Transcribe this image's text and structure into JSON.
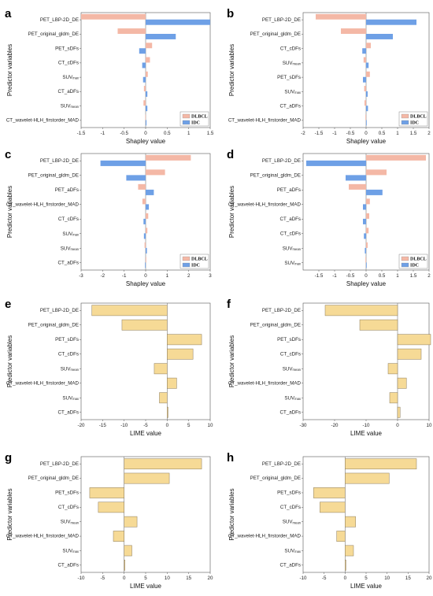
{
  "figure": {
    "panel_labels": [
      "a",
      "b",
      "c",
      "d",
      "e",
      "f",
      "g",
      "h"
    ],
    "colors": {
      "DLBCL": "#f4b8a6",
      "IDC": "#6ea0e6",
      "LIME": "#f6da96",
      "bar_edge": "#8a7a5a"
    }
  },
  "chart_data": [
    {
      "panel": "a",
      "type": "bar",
      "orientation": "horizontal",
      "categories": [
        "PET_LBP-2D_DE",
        "PET_original_gldm_DE",
        "PET_sDFs",
        "CT_cDFs",
        "SUV_max",
        "CT_aDFs",
        "SUV_mean",
        "CT_wavelet-HLH_firstorder_MAD"
      ],
      "series": [
        {
          "name": "DLBCL",
          "values": [
            -1.5,
            -0.65,
            0.15,
            0.1,
            0.05,
            -0.04,
            -0.05,
            -0.01
          ]
        },
        {
          "name": "IDC",
          "values": [
            1.5,
            0.7,
            -0.15,
            -0.08,
            -0.06,
            0.04,
            0.04,
            0.02
          ]
        }
      ],
      "xlabel": "Shapley value",
      "ylabel": "Predictor variables",
      "xlim": [
        -1.5,
        1.5
      ],
      "xticks": [
        -1.5,
        -1,
        -0.5,
        0,
        0.5,
        1,
        1.5
      ],
      "xtick_labels": [
        "-1.5",
        "-1",
        "-0.5",
        "0",
        "0.5",
        "1",
        "1.5"
      ],
      "legend": "bottom-right"
    },
    {
      "panel": "b",
      "type": "bar",
      "orientation": "horizontal",
      "categories": [
        "PET_LBP-2D_DE",
        "PET_original_gldm_DE",
        "CT_cDFs",
        "SUV_mean",
        "PET_sDFs",
        "SUV_max",
        "CT_aDFs",
        "CT_wavelet-HLH_firstorder_MAD"
      ],
      "series": [
        {
          "name": "DLBCL",
          "values": [
            -1.6,
            -0.8,
            0.15,
            -0.08,
            0.12,
            -0.06,
            -0.05,
            -0.02
          ]
        },
        {
          "name": "IDC",
          "values": [
            1.6,
            0.85,
            -0.12,
            0.08,
            -0.1,
            0.05,
            0.06,
            0.02
          ]
        }
      ],
      "xlabel": "Shapley value",
      "ylabel": "Predictor variables",
      "xlim": [
        -2,
        2
      ],
      "xticks": [
        -2,
        -1.5,
        -1,
        -0.5,
        0,
        0.5,
        1,
        1.5,
        2
      ],
      "xtick_labels": [
        "-2",
        "-1.5",
        "-1",
        "-0.5",
        "0",
        "0.5",
        "1",
        "1.5",
        "2"
      ],
      "legend": "bottom-right"
    },
    {
      "panel": "c",
      "type": "bar",
      "orientation": "horizontal",
      "categories": [
        "PET_LBP-2D_DE",
        "PET_original_gldm_DE",
        "PET_aDFs",
        "CT_wavelet-HLH_firstorder_MAD",
        "CT_cDFs",
        "SUV_max",
        "SUV_mean",
        "CT_aDFs"
      ],
      "series": [
        {
          "name": "DLBCL",
          "values": [
            2.1,
            0.9,
            -0.35,
            -0.15,
            0.12,
            0.08,
            -0.05,
            0.03
          ]
        },
        {
          "name": "IDC",
          "values": [
            -2.1,
            -0.9,
            0.38,
            0.15,
            -0.1,
            -0.08,
            0.06,
            -0.03
          ]
        }
      ],
      "xlabel": "Shapley value",
      "ylabel": "Predictor variables",
      "xlim": [
        -3,
        3
      ],
      "xticks": [
        -3,
        -2,
        -1,
        0,
        1,
        2,
        3
      ],
      "xtick_labels": [
        "-3",
        "-2",
        "-1",
        "0",
        "1",
        "2",
        "3"
      ],
      "legend": "bottom-right"
    },
    {
      "panel": "d",
      "type": "bar",
      "orientation": "horizontal",
      "categories": [
        "PET_LBP-2D_DE",
        "PET_original_gldm_DE",
        "PET_aDFs",
        "CT_wavelet-HLH_firstorder_MAD",
        "CT_aDFs",
        "CT_cDFs",
        "SUV_mean",
        "SUV_max"
      ],
      "series": [
        {
          "name": "DLBCL",
          "values": [
            1.9,
            0.65,
            -0.55,
            0.12,
            0.1,
            0.08,
            0.05,
            -0.02
          ]
        },
        {
          "name": "IDC",
          "values": [
            -1.9,
            -0.65,
            0.52,
            -0.1,
            -0.1,
            -0.07,
            -0.04,
            0.02
          ]
        }
      ],
      "xlabel": "Shapley value",
      "ylabel": "Predictor variables",
      "xlim": [
        -2,
        2
      ],
      "xticks": [
        -1.5,
        -1,
        -0.5,
        0,
        0.5,
        1,
        1.5,
        2
      ],
      "xtick_labels": [
        "-1.5",
        "-1",
        "-0.5",
        "0",
        "0.5",
        "1",
        "1.5",
        "2"
      ],
      "legend": "bottom-right"
    },
    {
      "panel": "e",
      "type": "bar",
      "orientation": "horizontal",
      "categories": [
        "PET_LBP-2D_DE",
        "PET_original_gldm_DE",
        "PET_sDFs",
        "CT_cDFs",
        "SUV_mean",
        "CT_wavelet-HLH_firstorder_MAD",
        "SUV_max",
        "CT_aDFs"
      ],
      "series": [
        {
          "name": "LIME",
          "values": [
            -17.5,
            -10.5,
            8,
            6,
            -3,
            2.2,
            -1.8,
            0.2
          ]
        }
      ],
      "xlabel": "LIME value",
      "ylabel": "Predictor variables",
      "xlim": [
        -20,
        10
      ],
      "xticks": [
        -20,
        -15,
        -10,
        -5,
        0,
        5,
        10
      ],
      "xtick_labels": [
        "-20",
        "-15",
        "-10",
        "-5",
        "0",
        "5",
        "10"
      ]
    },
    {
      "panel": "f",
      "type": "bar",
      "orientation": "horizontal",
      "categories": [
        "PET_LBP-2D_DE",
        "PET_original_gldm_DE",
        "PET_sDFs",
        "CT_cDFs",
        "SUV_mean",
        "CT_wavelet-HLH_firstorder_MAD",
        "SUV_max",
        "CT_aDFs"
      ],
      "series": [
        {
          "name": "LIME",
          "values": [
            -23,
            -12,
            10.5,
            7.5,
            -3,
            2.8,
            -2.5,
            0.8
          ]
        }
      ],
      "xlabel": "LIME value",
      "ylabel": "Predictor variables",
      "xlim": [
        -30,
        10
      ],
      "xticks": [
        -30,
        -20,
        -10,
        0,
        10
      ],
      "xtick_labels": [
        "-30",
        "-20",
        "-10",
        "0",
        "10"
      ]
    },
    {
      "panel": "g",
      "type": "bar",
      "orientation": "horizontal",
      "categories": [
        "PET_LBP-2D_DE",
        "PET_original_gldm_DE",
        "PET_sDFs",
        "CT_cDFs",
        "SUV_mean",
        "CT_wavelet-HLH_firstorder_MAD",
        "SUV_max",
        "CT_aDFs"
      ],
      "series": [
        {
          "name": "LIME",
          "values": [
            18,
            10.5,
            -8,
            -6,
            3,
            -2.5,
            1.8,
            0.2
          ]
        }
      ],
      "xlabel": "LIME value",
      "ylabel": "Predictor variables",
      "xlim": [
        -10,
        20
      ],
      "xticks": [
        -10,
        -5,
        0,
        5,
        10,
        15,
        20
      ],
      "xtick_labels": [
        "-10",
        "-5",
        "0",
        "5",
        "10",
        "15",
        "20"
      ]
    },
    {
      "panel": "h",
      "type": "bar",
      "orientation": "horizontal",
      "categories": [
        "PET_LBP-2D_DE",
        "PET_original_gldm_DE",
        "PET_sDFs",
        "CT_cDFs",
        "SUV_mean",
        "CT_wavelet-HLH_firstorder_MAD",
        "SUV_max",
        "CT_aDFs"
      ],
      "series": [
        {
          "name": "LIME",
          "values": [
            17,
            10.5,
            -7.5,
            -6,
            2.5,
            -2,
            2,
            0.2
          ]
        }
      ],
      "xlabel": "LIME value",
      "ylabel": "Predictor variables",
      "xlim": [
        -10,
        20
      ],
      "xticks": [
        -10,
        -5,
        0,
        5,
        10,
        15,
        20
      ],
      "xtick_labels": [
        "-10",
        "-5",
        "0",
        "5",
        "10",
        "15",
        "20"
      ]
    }
  ]
}
